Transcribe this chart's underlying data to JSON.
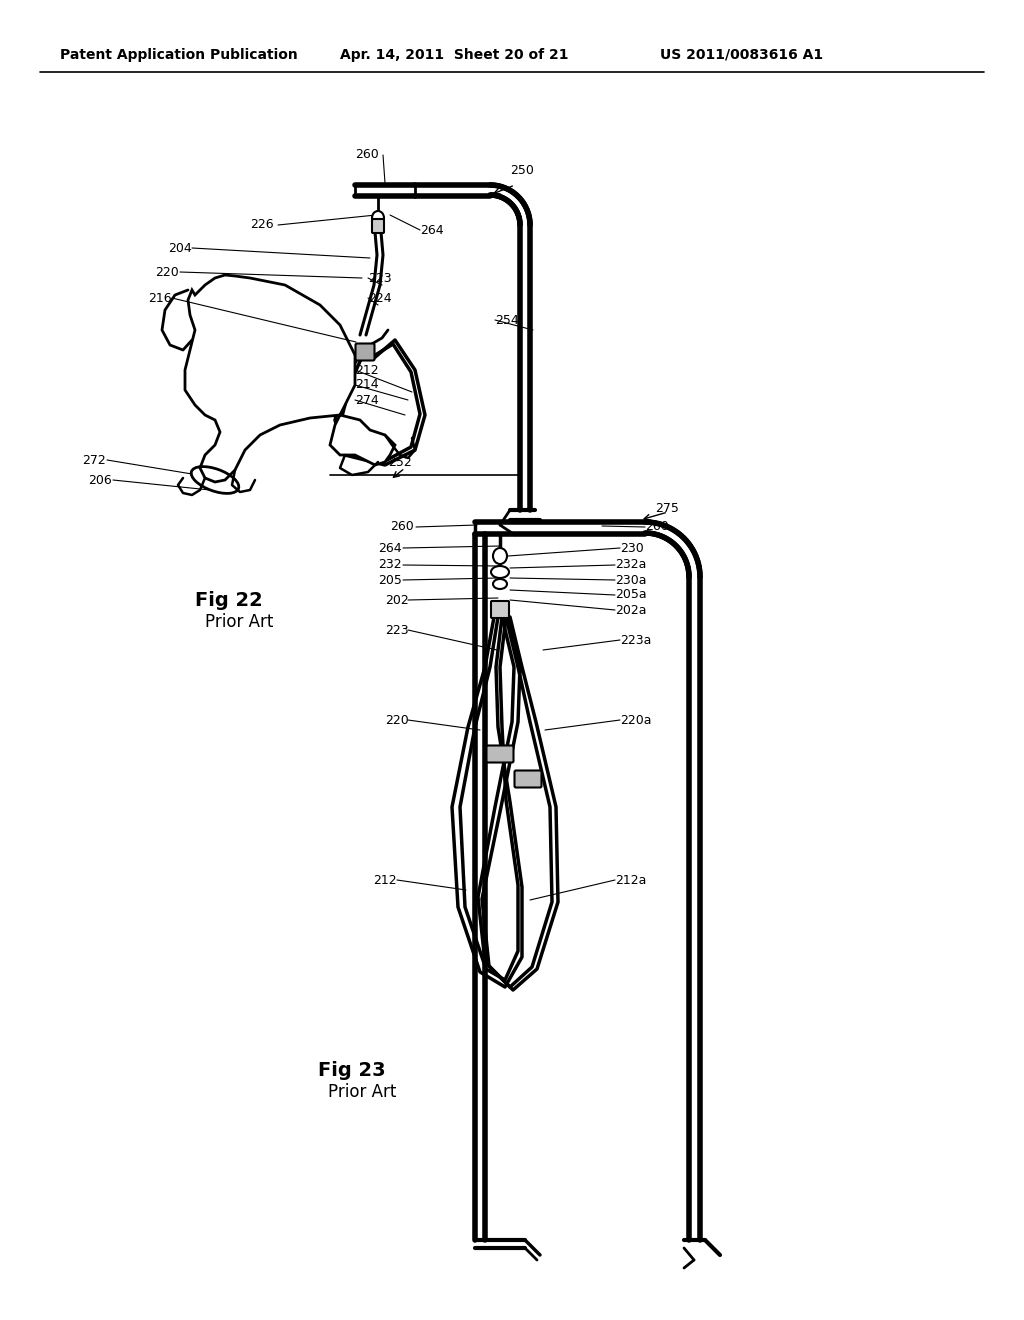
{
  "bg_color": "#ffffff",
  "header_left": "Patent Application Publication",
  "header_mid": "Apr. 14, 2011  Sheet 20 of 21",
  "header_right": "US 2011/0083616 A1",
  "fig22_title": "Fig 22",
  "fig22_subtitle": "Prior Art",
  "fig23_title": "Fig 23",
  "fig23_subtitle": "Prior Art",
  "line_color": "#000000",
  "label_fontsize": 9,
  "title_fontsize": 13
}
